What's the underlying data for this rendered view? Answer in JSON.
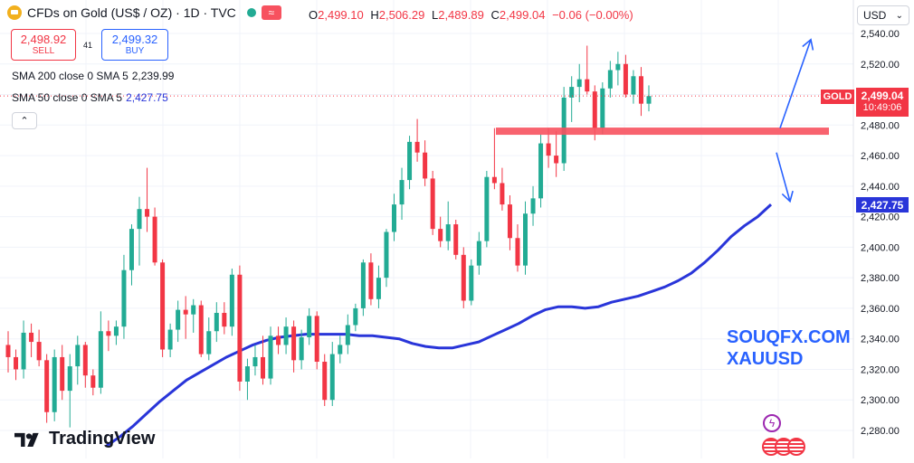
{
  "header": {
    "symbol_title": "CFDs on Gold (US$ / OZ) · 1D · TVC",
    "wave_icon": "≈",
    "ohlc": [
      {
        "k": "O",
        "v": "2,499.10"
      },
      {
        "k": "H",
        "v": "2,506.29"
      },
      {
        "k": "L",
        "v": "2,489.89"
      },
      {
        "k": "C",
        "v": "2,499.04"
      },
      {
        "k": "",
        "v": "−0.06 (−0.00%)"
      }
    ]
  },
  "trade": {
    "sell_price": "2,498.92",
    "sell_label": "SELL",
    "spread": "41",
    "buy_price": "2,499.32",
    "buy_label": "BUY"
  },
  "indicators": [
    {
      "label": "SMA 200 close 0 SMA 5",
      "value": "2,239.99",
      "color": "#131722"
    },
    {
      "label": "SMA 50 close 0 SMA 5",
      "value": "2,427.75",
      "color": "#2935d9"
    }
  ],
  "currency_selector": {
    "value": "USD"
  },
  "price_labels": {
    "symbol_tag": "GOLD",
    "last_price": "2,499.04",
    "countdown": "10:49:06",
    "sma50_tag": "2,427.75"
  },
  "watermark": {
    "line1": "SOUQFX.COM",
    "line2": "XAUUSD"
  },
  "brand": {
    "name": "TradingView"
  },
  "colors": {
    "up": "#22ab94",
    "down": "#f23645",
    "sma50": "#2935d9",
    "resistance": "#f7525f",
    "arrow": "#2962ff"
  },
  "chart_data": {
    "type": "candlestick",
    "interval": "1D",
    "y_axis": {
      "range": [
        2270,
        2548
      ],
      "ticks": [
        2280,
        2300,
        2320,
        2340,
        2360,
        2380,
        2400,
        2420,
        2440,
        2460,
        2480,
        2500,
        2520,
        2540
      ],
      "tick_labels": [
        "2,280.00",
        "2,300.00",
        "2,320.00",
        "2,340.00",
        "2,360.00",
        "2,380.00",
        "2,400.00",
        "2,420.00",
        "2,440.00",
        "2,460.00",
        "2,480.00",
        "2,500.00",
        "2,520.00",
        "2,540.00"
      ]
    },
    "grid": true,
    "last_close": 2499.04,
    "candles_ohlc": [
      [
        2336,
        2345,
        2318,
        2328
      ],
      [
        2328,
        2333,
        2313,
        2320
      ],
      [
        2320,
        2352,
        2314,
        2344
      ],
      [
        2344,
        2350,
        2328,
        2338
      ],
      [
        2338,
        2346,
        2322,
        2326
      ],
      [
        2326,
        2330,
        2285,
        2292
      ],
      [
        2292,
        2333,
        2286,
        2328
      ],
      [
        2328,
        2336,
        2300,
        2306
      ],
      [
        2306,
        2330,
        2282,
        2322
      ],
      [
        2322,
        2342,
        2310,
        2336
      ],
      [
        2336,
        2338,
        2308,
        2316
      ],
      [
        2316,
        2320,
        2303,
        2308
      ],
      [
        2308,
        2358,
        2304,
        2345
      ],
      [
        2345,
        2352,
        2332,
        2342
      ],
      [
        2342,
        2352,
        2336,
        2348
      ],
      [
        2348,
        2395,
        2340,
        2385
      ],
      [
        2385,
        2415,
        2375,
        2412
      ],
      [
        2412,
        2433,
        2388,
        2425
      ],
      [
        2425,
        2452,
        2410,
        2420
      ],
      [
        2420,
        2426,
        2388,
        2390
      ],
      [
        2390,
        2392,
        2328,
        2333
      ],
      [
        2333,
        2350,
        2328,
        2346
      ],
      [
        2346,
        2365,
        2338,
        2359
      ],
      [
        2359,
        2368,
        2340,
        2356
      ],
      [
        2356,
        2366,
        2344,
        2362
      ],
      [
        2362,
        2365,
        2328,
        2330
      ],
      [
        2330,
        2354,
        2326,
        2345
      ],
      [
        2345,
        2364,
        2338,
        2357
      ],
      [
        2357,
        2364,
        2343,
        2348
      ],
      [
        2348,
        2386,
        2342,
        2382
      ],
      [
        2382,
        2388,
        2306,
        2312
      ],
      [
        2312,
        2327,
        2300,
        2322
      ],
      [
        2322,
        2336,
        2316,
        2328
      ],
      [
        2328,
        2342,
        2310,
        2314
      ],
      [
        2314,
        2348,
        2310,
        2342
      ],
      [
        2342,
        2348,
        2330,
        2336
      ],
      [
        2336,
        2354,
        2330,
        2348
      ],
      [
        2348,
        2352,
        2318,
        2326
      ],
      [
        2326,
        2346,
        2320,
        2341
      ],
      [
        2341,
        2360,
        2336,
        2355
      ],
      [
        2355,
        2358,
        2320,
        2325
      ],
      [
        2325,
        2330,
        2296,
        2300
      ],
      [
        2300,
        2338,
        2296,
        2330
      ],
      [
        2330,
        2342,
        2324,
        2336
      ],
      [
        2336,
        2356,
        2330,
        2349
      ],
      [
        2349,
        2363,
        2345,
        2360
      ],
      [
        2360,
        2392,
        2355,
        2390
      ],
      [
        2390,
        2396,
        2362,
        2366
      ],
      [
        2366,
        2388,
        2360,
        2380
      ],
      [
        2380,
        2412,
        2374,
        2410
      ],
      [
        2410,
        2435,
        2404,
        2428
      ],
      [
        2428,
        2452,
        2418,
        2444
      ],
      [
        2444,
        2473,
        2438,
        2469
      ],
      [
        2469,
        2484,
        2456,
        2462
      ],
      [
        2462,
        2470,
        2440,
        2445
      ],
      [
        2445,
        2450,
        2408,
        2412
      ],
      [
        2412,
        2420,
        2400,
        2404
      ],
      [
        2404,
        2430,
        2398,
        2415
      ],
      [
        2415,
        2418,
        2392,
        2395
      ],
      [
        2395,
        2400,
        2360,
        2365
      ],
      [
        2365,
        2392,
        2362,
        2388
      ],
      [
        2388,
        2410,
        2382,
        2404
      ],
      [
        2404,
        2450,
        2400,
        2446
      ],
      [
        2446,
        2478,
        2438,
        2442
      ],
      [
        2442,
        2452,
        2424,
        2428
      ],
      [
        2428,
        2434,
        2398,
        2406
      ],
      [
        2406,
        2415,
        2384,
        2388
      ],
      [
        2388,
        2430,
        2382,
        2422
      ],
      [
        2422,
        2440,
        2414,
        2432
      ],
      [
        2432,
        2474,
        2426,
        2468
      ],
      [
        2468,
        2478,
        2452,
        2460
      ],
      [
        2460,
        2476,
        2446,
        2455
      ],
      [
        2455,
        2505,
        2450,
        2498
      ],
      [
        2498,
        2512,
        2482,
        2505
      ],
      [
        2505,
        2520,
        2495,
        2510
      ],
      [
        2510,
        2532,
        2500,
        2502
      ],
      [
        2502,
        2506,
        2470,
        2478
      ],
      [
        2478,
        2508,
        2474,
        2504
      ],
      [
        2504,
        2522,
        2498,
        2516
      ],
      [
        2516,
        2528,
        2506,
        2520
      ],
      [
        2520,
        2526,
        2498,
        2500
      ],
      [
        2500,
        2516,
        2494,
        2512
      ],
      [
        2512,
        2518,
        2486,
        2494
      ],
      [
        2494,
        2506,
        2489,
        2499
      ]
    ],
    "sma50": [
      [
        2270,
        2276,
        2283,
        2291,
        2299,
        2306,
        2313,
        2318,
        2323,
        2328,
        2332,
        2336,
        2339,
        2341,
        2342,
        2343,
        2343,
        2343,
        2343,
        2342,
        2342,
        2341,
        2340,
        2337,
        2335,
        2334,
        2334,
        2336,
        2338,
        2342,
        2346,
        2350,
        2355,
        2359,
        2361,
        2361,
        2360,
        2361,
        2364,
        2366,
        2368,
        2371,
        2374,
        2378,
        2383,
        2390,
        2398,
        2407,
        2414,
        2420,
        2428
      ]
    ],
    "annotations": {
      "resistance_level": 2476,
      "arrow_up": {
        "from": 2478,
        "to": 2536
      },
      "arrow_down": {
        "from": 2462,
        "to": 2430
      }
    }
  }
}
